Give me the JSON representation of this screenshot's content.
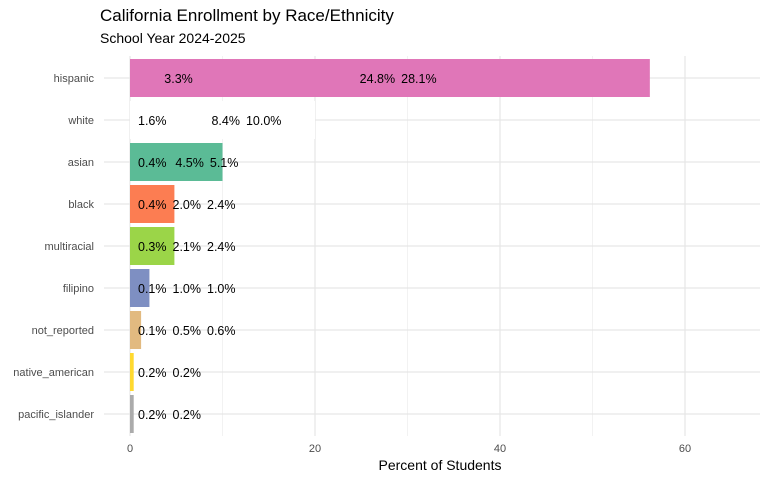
{
  "chart_data": {
    "type": "bar",
    "orientation": "horizontal",
    "title": "California Enrollment by Race/Ethnicity",
    "subtitle": "School Year 2024-2025",
    "xlabel": "Percent of Students",
    "ylabel": "",
    "xlim": [
      0,
      68
    ],
    "xticks": [
      0,
      20,
      40,
      60
    ],
    "grid": true,
    "categories": [
      "hispanic",
      "white",
      "asian",
      "black",
      "multiracial",
      "filipino",
      "not_reported",
      "native_american",
      "pacific_islander"
    ],
    "segments": [
      [
        3.3,
        24.8,
        28.1
      ],
      [
        1.6,
        8.4,
        10.0
      ],
      [
        0.4,
        4.5,
        5.1
      ],
      [
        0.4,
        2.0,
        2.4
      ],
      [
        0.3,
        2.1,
        2.4
      ],
      [
        0.1,
        1.0,
        1.0
      ],
      [
        0.1,
        0.5,
        0.6
      ],
      [
        0.0,
        0.2,
        0.2
      ],
      [
        0.0,
        0.2,
        0.2
      ]
    ],
    "labels": [
      [
        "3.3%",
        "24.8%",
        "28.1%"
      ],
      [
        "1.6%",
        "8.4%",
        "10.0%"
      ],
      [
        "0.4%",
        "4.5%",
        "5.1%"
      ],
      [
        "0.4%",
        "2.0%",
        "2.4%"
      ],
      [
        "0.3%",
        "2.1%",
        "2.4%"
      ],
      [
        "0.1%",
        "1.0%",
        "1.0%"
      ],
      [
        "0.1%",
        "0.5%",
        "0.6%"
      ],
      [
        "0.2%",
        "0.2%"
      ],
      [
        "0.2%",
        "0.2%"
      ]
    ],
    "colors": [
      "#E076B8",
      "#FFFFFF",
      "#5BBB96",
      "#FC7D52",
      "#9BD548",
      "#7E8FC2",
      "#E2BA80",
      "#FFD92F",
      "#ABABAB"
    ]
  }
}
